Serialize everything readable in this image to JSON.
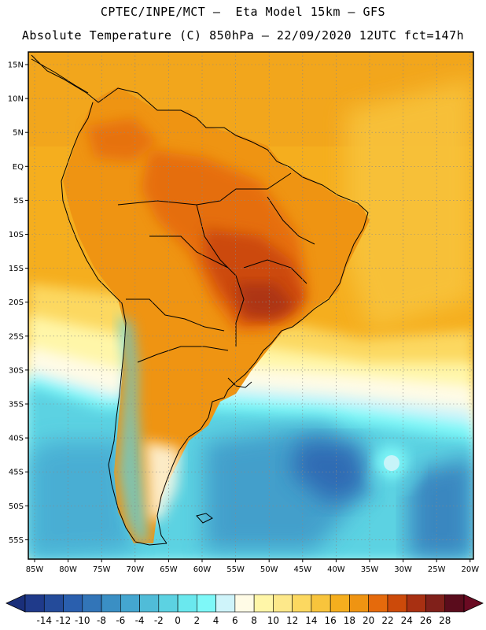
{
  "header": {
    "line1": "CPTEC/INPE/MCT –  Eta Model 15km – GFS",
    "line2": "Absolute Temperature (C) 850hPa – 22/09/2020 12UTC fct=147h"
  },
  "map": {
    "lat_labels": [
      "15N",
      "10N",
      "5N",
      "EQ",
      "5S",
      "10S",
      "15S",
      "20S",
      "25S",
      "30S",
      "35S",
      "40S",
      "45S",
      "50S",
      "55S"
    ],
    "lon_labels": [
      "85W",
      "80W",
      "75W",
      "70W",
      "65W",
      "60W",
      "55W",
      "50W",
      "45W",
      "40W",
      "35W",
      "30W",
      "25W",
      "20W"
    ],
    "lon_range": [
      -86,
      -20
    ],
    "lat_range": [
      -58,
      16
    ]
  },
  "colorbar": {
    "labels": [
      "-14",
      "-12",
      "-10",
      "-8",
      "-6",
      "-4",
      "-2",
      "0",
      "2",
      "4",
      "6",
      "8",
      "10",
      "12",
      "14",
      "16",
      "18",
      "20",
      "22",
      "24",
      "26",
      "28"
    ],
    "colors": [
      "#1f3a8a",
      "#244b9a",
      "#2a5fae",
      "#3275b8",
      "#3a8fc4",
      "#44a6d0",
      "#50bcd8",
      "#5cd2e2",
      "#6ae8ee",
      "#7ef8f8",
      "#cff4fa",
      "#fffbe6",
      "#fff6a8",
      "#fde88a",
      "#fcd860",
      "#f8c43c",
      "#f5ae1e",
      "#ef9412",
      "#e56a0c",
      "#cc4a0a",
      "#a83012",
      "#80201a",
      "#5a0c1c"
    ],
    "left_arrow_color": "#1a2f7a",
    "right_arrow_color": "#6a0a22"
  }
}
